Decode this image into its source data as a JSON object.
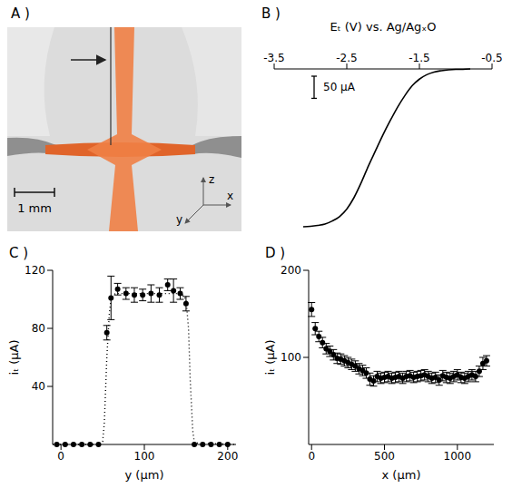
{
  "chart_data": [
    {
      "type": "image",
      "panel": "A )",
      "scale_bar": {
        "value": 1,
        "label": "1 mm"
      },
      "axis_labels": [
        "z",
        "y",
        "x"
      ]
    },
    {
      "type": "line",
      "panel": "B )",
      "x_label": "Eₜ (V) vs. Ag/AgₓO",
      "color": "#000000",
      "x": [
        -3.1,
        -3.0,
        -2.9,
        -2.8,
        -2.7,
        -2.6,
        -2.5,
        -2.4,
        -2.3,
        -2.2,
        -2.1,
        -2.0,
        -1.9,
        -1.8,
        -1.7,
        -1.6,
        -1.5,
        -1.4,
        -1.3,
        -1.2,
        -1.1,
        -1.0,
        -0.9,
        -0.8
      ],
      "values": [
        -358,
        -357,
        -355,
        -352,
        -345,
        -335,
        -318,
        -292,
        -258,
        -220,
        -185,
        -150,
        -118,
        -88,
        -62,
        -40,
        -25,
        -15,
        -9,
        -6,
        -4,
        -3,
        -3,
        -2
      ],
      "xlim": [
        -3.5,
        -0.5
      ],
      "xticks": [
        -3.5,
        -2.5,
        -1.5,
        -0.5
      ],
      "tick_labels": "x",
      "scale_bar": {
        "value": 50,
        "label": "50 μA"
      }
    },
    {
      "type": "scatter",
      "panel": "C )",
      "x_label": "y (μm)",
      "y_label": "iₜ (μA)",
      "xlim": [
        -10,
        210
      ],
      "xticks": [
        0,
        100,
        200
      ],
      "ylim": [
        0,
        120
      ],
      "yticks": [
        40,
        80,
        120
      ],
      "series": [
        {
          "type": "scatter",
          "marker": "circle",
          "color": "#000000",
          "x": [
            -5,
            5,
            15,
            25,
            35,
            45,
            55,
            60,
            68,
            78,
            88,
            98,
            108,
            118,
            128,
            135,
            143,
            150,
            160,
            170,
            180,
            190,
            200
          ],
          "values": [
            0,
            0,
            0,
            0,
            0,
            0,
            77,
            101,
            107,
            104,
            103,
            103,
            104,
            103,
            110,
            106,
            104,
            97,
            0,
            0,
            0,
            0,
            0
          ],
          "errors": [
            0,
            0,
            0,
            0,
            0,
            0,
            5,
            15,
            4,
            4,
            5,
            4,
            6,
            5,
            4,
            8,
            4,
            5,
            0,
            0,
            0,
            0,
            0
          ]
        },
        {
          "type": "line",
          "line_style": "dotted",
          "color": "#000000",
          "x": [
            -10,
            45,
            50,
            52,
            55,
            58,
            60,
            65,
            100,
            145,
            150,
            153,
            155,
            158,
            160,
            210
          ],
          "values": [
            0,
            0,
            2,
            15,
            60,
            90,
            100,
            104,
            104,
            104,
            100,
            80,
            45,
            10,
            1,
            0
          ]
        }
      ]
    },
    {
      "type": "scatter",
      "panel": "D )",
      "x_label": "x (μm)",
      "y_label": "iₜ (μA)",
      "xlim": [
        -20,
        1250
      ],
      "xticks": [
        0,
        500,
        1000
      ],
      "ylim": [
        0,
        200
      ],
      "yticks": [
        100,
        200
      ],
      "series": [
        {
          "type": "scatter",
          "marker": "circle",
          "color": "#000000",
          "x": [
            0,
            25,
            50,
            75,
            100,
            125,
            150,
            175,
            200,
            225,
            250,
            275,
            300,
            325,
            350,
            375,
            400,
            425,
            450,
            475,
            500,
            525,
            550,
            575,
            600,
            625,
            650,
            675,
            700,
            725,
            750,
            775,
            800,
            825,
            850,
            875,
            900,
            925,
            950,
            975,
            1000,
            1025,
            1050,
            1075,
            1100,
            1125,
            1150,
            1175,
            1200
          ],
          "values": [
            155,
            133,
            124,
            117,
            110,
            107,
            103,
            99,
            98,
            96,
            94,
            92,
            90,
            87,
            85,
            82,
            75,
            73,
            78,
            76,
            77,
            78,
            76,
            77,
            78,
            76,
            78,
            79,
            77,
            78,
            79,
            80,
            78,
            76,
            77,
            74,
            79,
            77,
            76,
            78,
            80,
            77,
            76,
            78,
            80,
            78,
            84,
            93,
            96
          ],
          "errors": [
            8,
            7,
            6,
            6,
            6,
            6,
            6,
            6,
            6,
            6,
            6,
            6,
            6,
            6,
            6,
            6,
            7,
            6,
            6,
            6,
            6,
            6,
            6,
            6,
            6,
            6,
            6,
            6,
            6,
            6,
            6,
            6,
            6,
            6,
            6,
            6,
            6,
            6,
            6,
            6,
            6,
            6,
            6,
            6,
            6,
            6,
            6,
            7,
            6
          ]
        }
      ]
    }
  ]
}
